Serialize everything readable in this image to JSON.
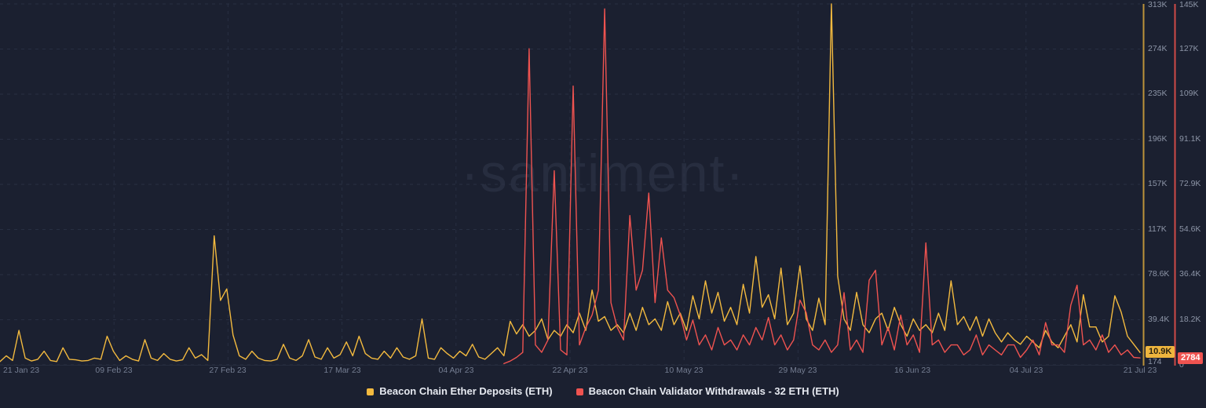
{
  "watermark": "·santiment·",
  "colors": {
    "background": "#1b2030",
    "deposits": "#f3ba3f",
    "withdrawals": "#ef5350",
    "deposits_axis_line": "#bb923a",
    "withdrawals_axis_line": "#cf4a47",
    "grid": "#2c3347",
    "axis_label_text": "#8d95a7",
    "x_label_text": "#747d91",
    "deposit_badge_bg": "#eeb53e",
    "deposit_badge_text": "#2b2310",
    "withdrawal_badge_bg": "#ef5350",
    "withdrawal_badge_text": "#ffffff"
  },
  "left_axis": {
    "series": "Beacon Chain Ether Deposits (ETH)",
    "labels": [
      "313K",
      "274K",
      "235K",
      "196K",
      "157K",
      "117K",
      "78.6K",
      "39.4K",
      "174"
    ],
    "current_badge": "10.9K",
    "min": 174,
    "max": 313000
  },
  "right_axis": {
    "series": "Beacon Chain Validator Withdrawals - 32 ETH (ETH)",
    "labels": [
      "145K",
      "127K",
      "109K",
      "91.1K",
      "72.9K",
      "54.6K",
      "36.4K",
      "18.2K",
      "0"
    ],
    "current_badge": "2784",
    "min": 0,
    "max": 145000
  },
  "x_axis": {
    "labels": [
      "21 Jan 23",
      "09 Feb 23",
      "27 Feb 23",
      "17 Mar 23",
      "04 Apr 23",
      "22 Apr 23",
      "10 May 23",
      "29 May 23",
      "16 Jun 23",
      "04 Jul 23",
      "21 Jul 23"
    ]
  },
  "legend": {
    "items": [
      {
        "label": "Beacon Chain Ether Deposits (ETH)",
        "color": "#f3ba3f"
      },
      {
        "label": "Beacon Chain Validator Withdrawals - 32 ETH (ETH)",
        "color": "#ef5350"
      }
    ]
  },
  "chart_data": {
    "type": "line",
    "title": "",
    "x_start": "21 Jan 23",
    "x_end": "21 Jul 23",
    "interval_days": 1,
    "grid": "dashed",
    "legend_position": "bottom-center",
    "series": [
      {
        "name": "Beacon Chain Ether Deposits (ETH)",
        "color": "#f3ba3f",
        "axis": "left",
        "ylim": [
          174,
          313000
        ],
        "values": [
          3000,
          8000,
          4000,
          30000,
          6000,
          3500,
          5000,
          12000,
          4000,
          3000,
          15000,
          5000,
          4500,
          3500,
          4000,
          6000,
          5000,
          25000,
          12000,
          4000,
          8000,
          5000,
          3500,
          22000,
          6000,
          4000,
          10000,
          5000,
          3500,
          4500,
          15000,
          6000,
          9000,
          4000,
          112000,
          56000,
          66000,
          26000,
          8000,
          5000,
          12000,
          6000,
          4000,
          3500,
          5000,
          18000,
          6000,
          4000,
          8000,
          22000,
          7000,
          5000,
          15000,
          6000,
          9000,
          20000,
          8000,
          25000,
          10000,
          6000,
          5000,
          12000,
          6000,
          15000,
          7000,
          5000,
          8000,
          40000,
          6000,
          5000,
          15000,
          10000,
          6000,
          12000,
          8000,
          18000,
          7000,
          5000,
          10000,
          15000,
          8000,
          38000,
          27000,
          35000,
          25000,
          30000,
          40000,
          22000,
          30000,
          25000,
          35000,
          28000,
          45000,
          30000,
          65000,
          38000,
          42000,
          30000,
          35000,
          28000,
          45000,
          30000,
          50000,
          35000,
          40000,
          30000,
          55000,
          35000,
          45000,
          30000,
          60000,
          40000,
          73000,
          45000,
          63000,
          38000,
          50000,
          35000,
          70000,
          45000,
          94000,
          50000,
          61000,
          40000,
          84000,
          35000,
          45000,
          86000,
          40000,
          30000,
          58000,
          35000,
          313000,
          77000,
          40000,
          30000,
          63000,
          35000,
          28000,
          40000,
          45000,
          30000,
          50000,
          35000,
          25000,
          40000,
          30000,
          35000,
          28000,
          45000,
          30000,
          73000,
          35000,
          42000,
          30000,
          42000,
          25000,
          40000,
          28000,
          20000,
          28000,
          22000,
          18000,
          25000,
          20000,
          15000,
          30000,
          20000,
          15000,
          25000,
          35000,
          20000,
          61000,
          33000,
          33000,
          20000,
          25000,
          60000,
          46000,
          25000,
          18000,
          10900
        ]
      },
      {
        "name": "Beacon Chain Validator Withdrawals - 32 ETH (ETH)",
        "color": "#ef5350",
        "axis": "right",
        "ylim": [
          0,
          145000
        ],
        "values": [
          null,
          null,
          null,
          null,
          null,
          null,
          null,
          null,
          null,
          null,
          null,
          null,
          null,
          null,
          null,
          null,
          null,
          null,
          null,
          null,
          null,
          null,
          null,
          null,
          null,
          null,
          null,
          null,
          null,
          null,
          null,
          null,
          null,
          null,
          null,
          null,
          null,
          null,
          null,
          null,
          null,
          null,
          null,
          null,
          null,
          null,
          null,
          null,
          null,
          null,
          null,
          null,
          null,
          null,
          null,
          null,
          null,
          null,
          null,
          null,
          null,
          null,
          null,
          null,
          null,
          null,
          null,
          null,
          null,
          null,
          null,
          null,
          null,
          null,
          null,
          null,
          null,
          null,
          null,
          null,
          500,
          1500,
          3000,
          5000,
          127000,
          8000,
          5000,
          10000,
          78000,
          6000,
          4000,
          112000,
          8000,
          15000,
          20000,
          30000,
          143000,
          25000,
          15000,
          10000,
          60000,
          30000,
          38000,
          69000,
          25000,
          51000,
          30000,
          27000,
          20000,
          10000,
          18000,
          8000,
          12000,
          6000,
          15000,
          8000,
          10000,
          6000,
          12000,
          8000,
          15000,
          10000,
          19000,
          8000,
          12000,
          6000,
          10000,
          26000,
          21000,
          8000,
          6000,
          10000,
          5000,
          8000,
          29000,
          6000,
          10000,
          5000,
          34000,
          38000,
          8000,
          15000,
          6000,
          20000,
          8000,
          12000,
          5000,
          49000,
          8000,
          10000,
          5000,
          8000,
          8000,
          4000,
          6000,
          12000,
          4000,
          8000,
          6000,
          4000,
          8000,
          8000,
          3000,
          6000,
          10000,
          4000,
          17000,
          8000,
          8000,
          5000,
          24000,
          32000,
          8000,
          10000,
          6000,
          12000,
          5000,
          8000,
          4000,
          6000,
          3000,
          2784
        ]
      }
    ]
  }
}
